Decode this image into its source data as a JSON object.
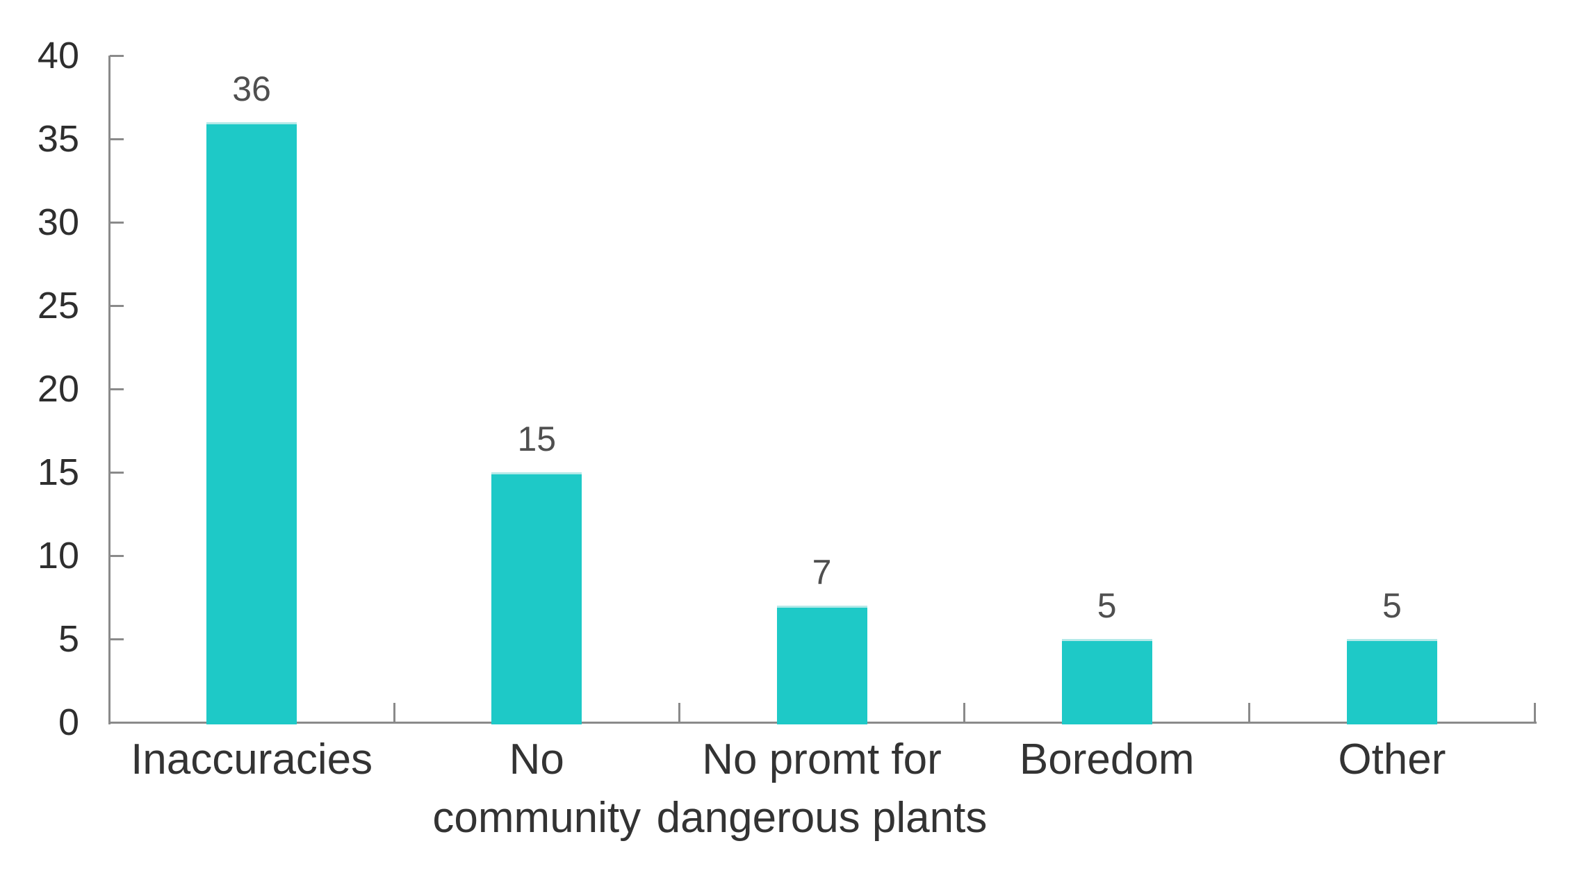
{
  "chart_data": {
    "type": "bar",
    "title": "",
    "xlabel": "",
    "ylabel": "",
    "categories": [
      "Inaccuracies",
      "No community",
      "No promt for dangerous plants",
      "Boredom",
      "Other"
    ],
    "category_label_lines": [
      [
        "Inaccuracies",
        ""
      ],
      [
        "No",
        "community"
      ],
      [
        "No promt for",
        "dangerous plants"
      ],
      [
        "Boredom",
        ""
      ],
      [
        "Other",
        ""
      ]
    ],
    "values": [
      36,
      15,
      7,
      5,
      5
    ],
    "value_labels": [
      "36",
      "15",
      "7",
      "5",
      "5"
    ],
    "ylim": [
      0,
      40
    ],
    "yticks": [
      0,
      5,
      10,
      15,
      20,
      25,
      30,
      35,
      40
    ],
    "grid": false,
    "legend": false,
    "colors": {
      "bar": "#1ec9c7",
      "bar_top_edge": "#b4e9e8",
      "axis": "#8a8a8a",
      "y_tick_label": "#2e2e2e",
      "x_tick_label": "#333333",
      "value_label": "#4f4f4f",
      "background": "#ffffff"
    }
  }
}
